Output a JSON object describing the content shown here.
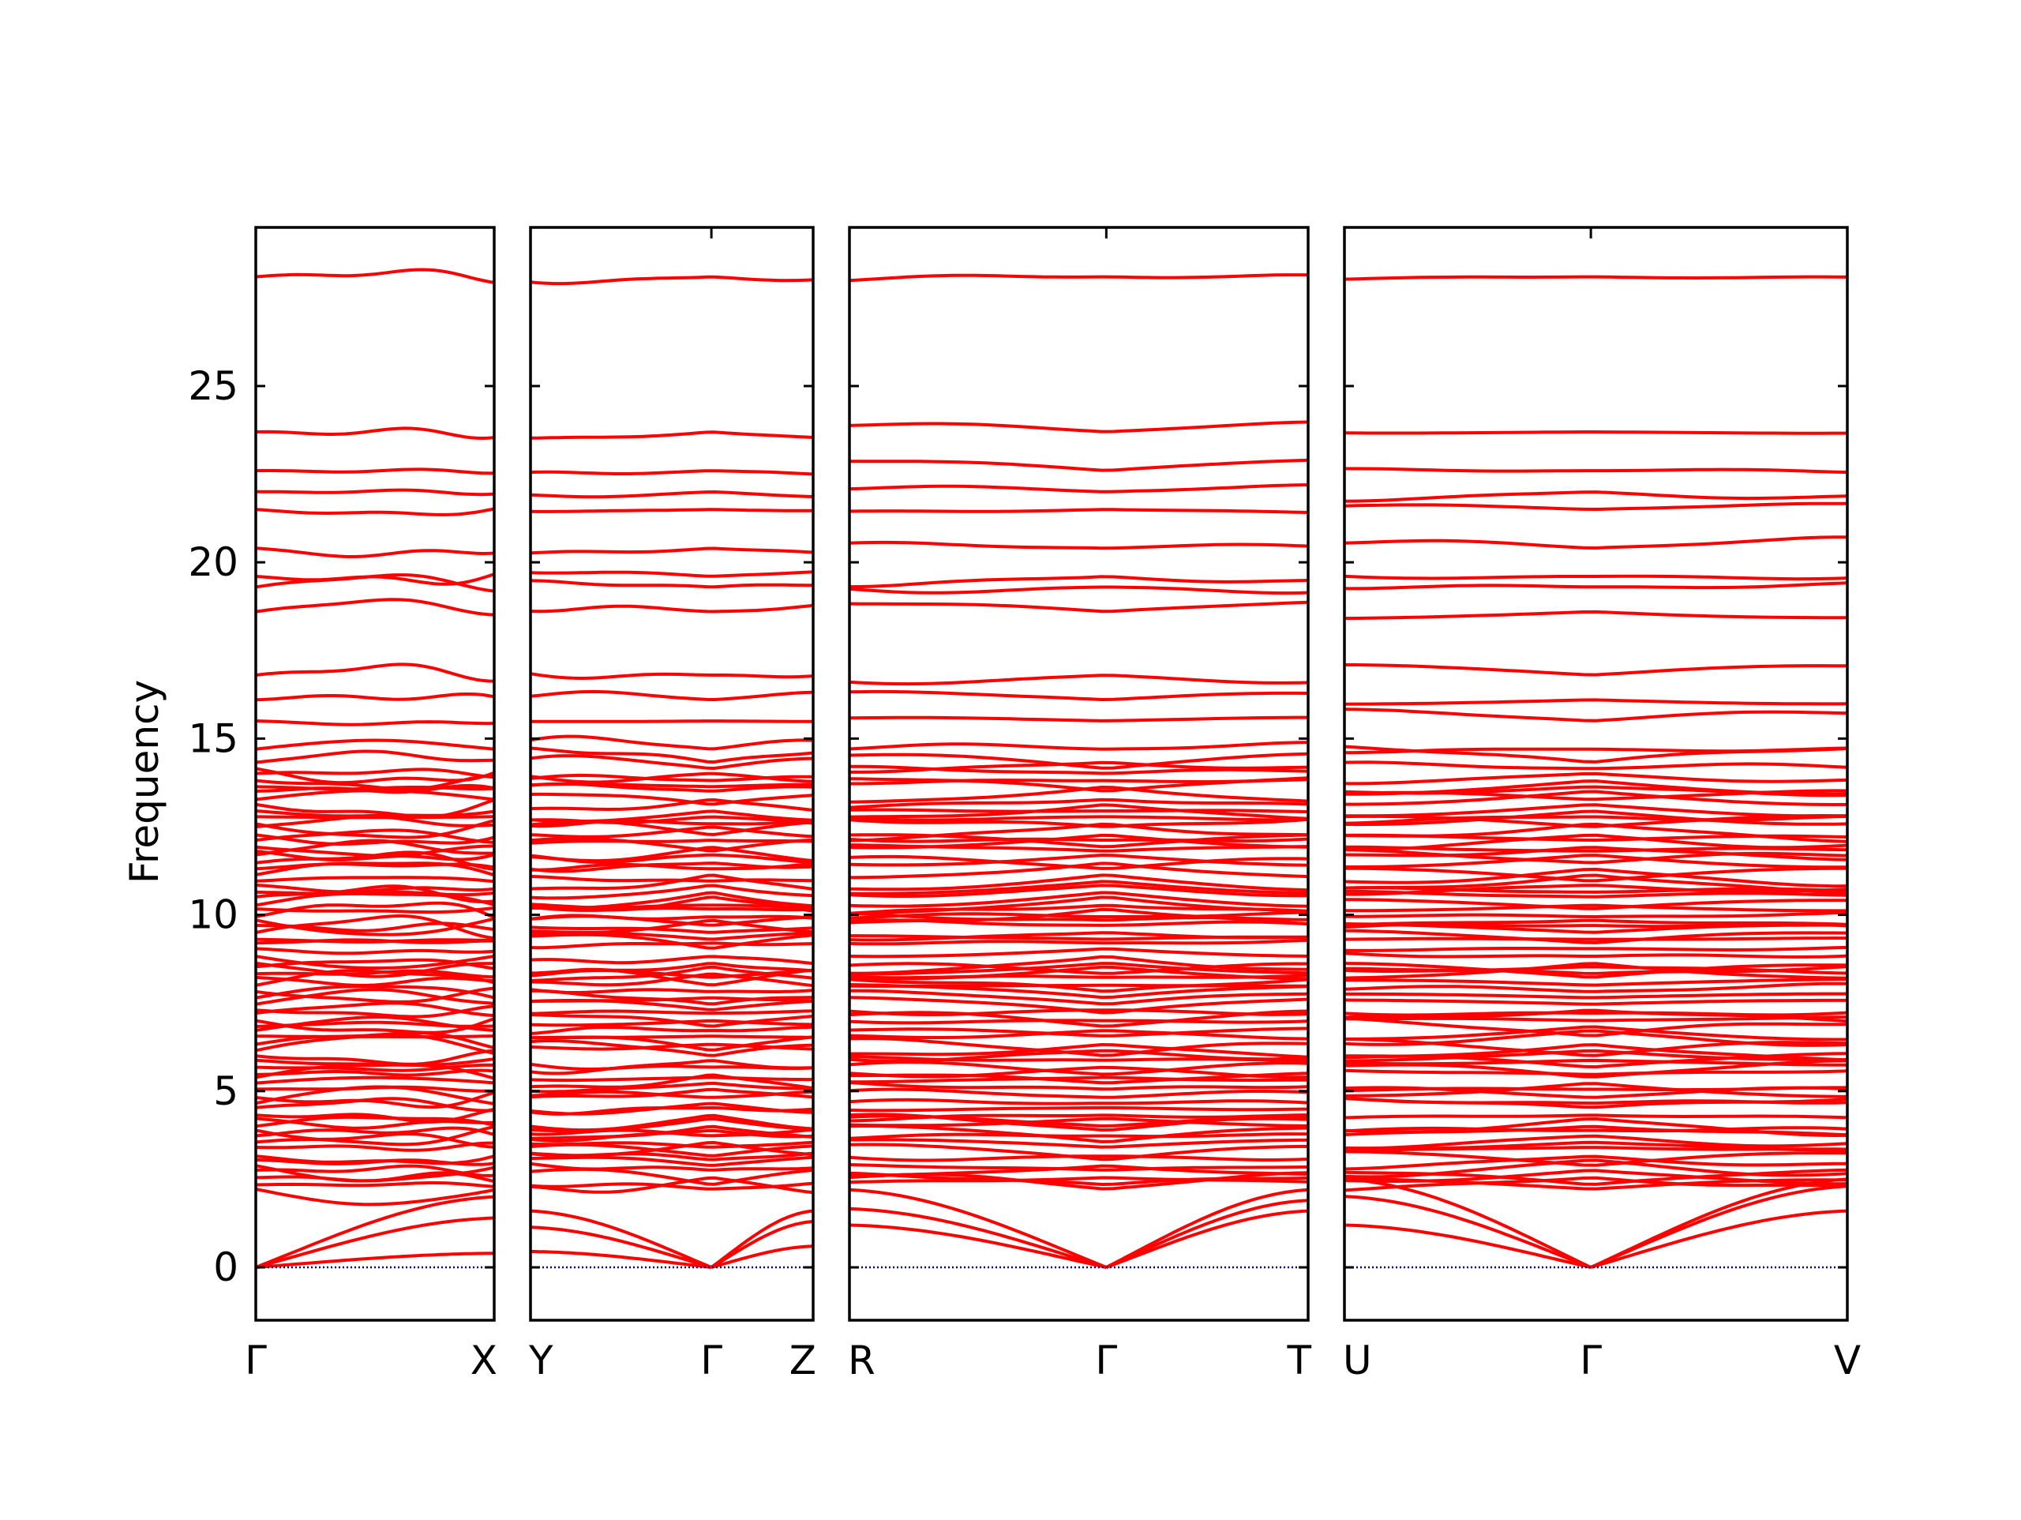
{
  "chart_data": {
    "type": "line",
    "ylabel": "Frequency",
    "ylim": [
      -1.5,
      29.5
    ],
    "yticks": [
      0,
      5,
      10,
      15,
      20,
      25
    ],
    "ytick_labels": [
      "0",
      "5",
      "10",
      "15",
      "20",
      "25"
    ],
    "line_color": "#ff0000",
    "zero_line_color": "#00008b",
    "panels": [
      {
        "path": [
          "Γ",
          "X"
        ],
        "gamma_position": 0,
        "acoustic_end": [
          0.4,
          1.4,
          2.0
        ],
        "optical_start": 2.2,
        "labels": [
          {
            "text": "Γ",
            "at": 0
          },
          {
            "text": "X",
            "at": 1
          }
        ]
      },
      {
        "path": [
          "Y",
          "Γ",
          "Z"
        ],
        "gamma_position": 0.64,
        "acoustic_end": [
          0.6,
          1.3,
          1.6
        ],
        "optical_start": 2.2,
        "labels": [
          {
            "text": "Y",
            "at": 0
          },
          {
            "text": "Γ",
            "at": 0.64
          },
          {
            "text": "Z",
            "at": 1
          }
        ]
      },
      {
        "path": [
          "R",
          "Γ",
          "T"
        ],
        "gamma_position": 0.56,
        "acoustic_end": [
          1.6,
          1.9,
          2.2
        ],
        "optical_start": 2.2,
        "labels": [
          {
            "text": "R",
            "at": 0
          },
          {
            "text": "Γ",
            "at": 0.56
          },
          {
            "text": "T",
            "at": 1
          }
        ]
      },
      {
        "path": [
          "U",
          "Γ",
          "V"
        ],
        "gamma_position": 0.49,
        "acoustic_end": [
          1.6,
          2.3,
          2.5
        ],
        "optical_start": 2.2,
        "labels": [
          {
            "text": "U",
            "at": 0
          },
          {
            "text": "Γ",
            "at": 0.49
          },
          {
            "text": "V",
            "at": 1
          }
        ]
      }
    ],
    "upper_band_levels": [
      28.1,
      23.7,
      22.6,
      22.0,
      21.5,
      20.4,
      19.6,
      19.3,
      18.6,
      16.8,
      16.1,
      15.5,
      14.7
    ],
    "dense_band_range": [
      2.2,
      14.3
    ]
  }
}
